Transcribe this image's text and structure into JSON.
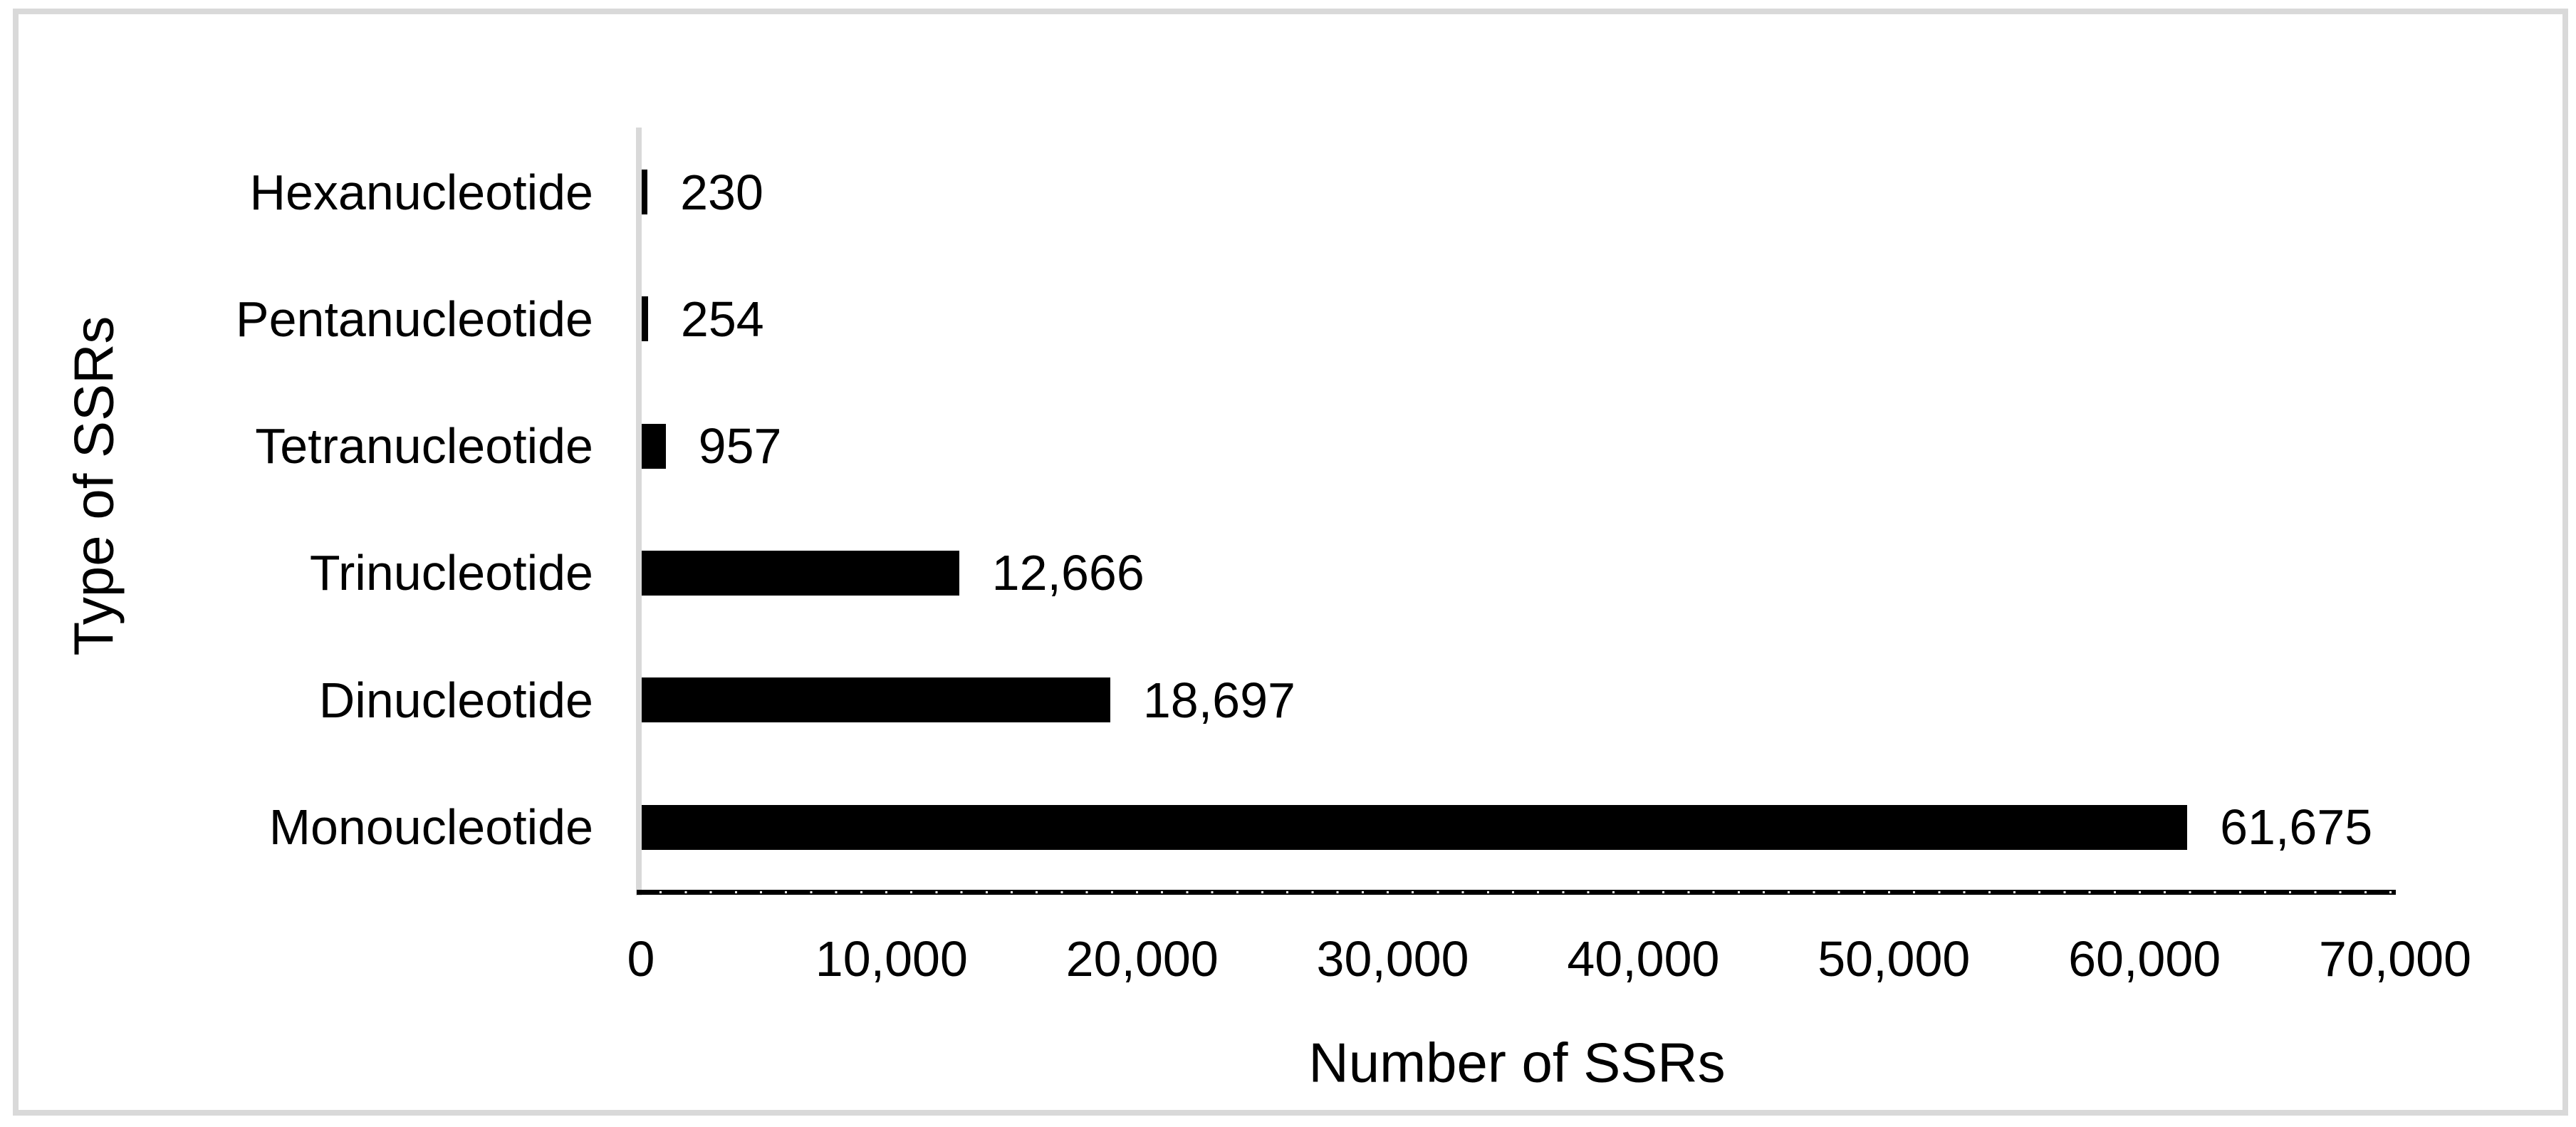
{
  "chart_data": {
    "type": "bar",
    "orientation": "horizontal",
    "title": "",
    "categories": [
      "Hexanucleotide",
      "Pentanucleotide",
      "Tetranucleotide",
      "Trinucleotide",
      "Dinucleotide",
      "Monoucleotide"
    ],
    "values": [
      230,
      254,
      957,
      12666,
      18697,
      61675
    ],
    "value_labels": [
      "230",
      "254",
      "957",
      "12,666",
      "18,697",
      "61,675"
    ],
    "xlabel": "Number of SSRs",
    "ylabel": "Type of SSRs",
    "xlim": [
      0,
      70000
    ],
    "x_ticks": [
      0,
      10000,
      20000,
      30000,
      40000,
      50000,
      60000,
      70000
    ],
    "x_tick_labels": [
      "0",
      "10,000",
      "20,000",
      "30,000",
      "40,000",
      "50,000",
      "60,000",
      "70,000"
    ],
    "grid": "off",
    "legend": "none",
    "bar_color": "#000000",
    "axis_line_color": "#d9d9d9",
    "frame_color": "#d9d9d9",
    "text_color": "#000000"
  }
}
